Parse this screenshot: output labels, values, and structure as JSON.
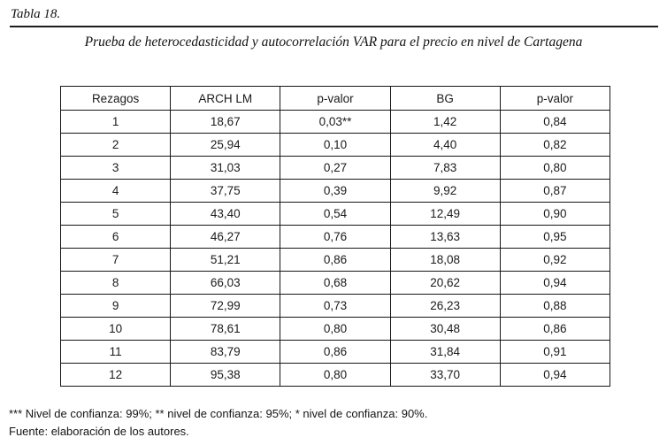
{
  "page": {
    "label": "Tabla 18.",
    "title": "Prueba de heterocedasticidad y autocorrelación VAR para el precio en nivel de Cartagena"
  },
  "table": {
    "headers": [
      "Rezagos",
      "ARCH LM",
      "p-valor",
      "BG",
      "p-valor"
    ],
    "rows": [
      [
        "1",
        "18,67",
        "0,03**",
        "1,42",
        "0,84"
      ],
      [
        "2",
        "25,94",
        "0,10",
        "4,40",
        "0,82"
      ],
      [
        "3",
        "31,03",
        "0,27",
        "7,83",
        "0,80"
      ],
      [
        "4",
        "37,75",
        "0,39",
        "9,92",
        "0,87"
      ],
      [
        "5",
        "43,40",
        "0,54",
        "12,49",
        "0,90"
      ],
      [
        "6",
        "46,27",
        "0,76",
        "13,63",
        "0,95"
      ],
      [
        "7",
        "51,21",
        "0,86",
        "18,08",
        "0,92"
      ],
      [
        "8",
        "66,03",
        "0,68",
        "20,62",
        "0,94"
      ],
      [
        "9",
        "72,99",
        "0,73",
        "26,23",
        "0,88"
      ],
      [
        "10",
        "78,61",
        "0,80",
        "30,48",
        "0,86"
      ],
      [
        "11",
        "83,79",
        "0,86",
        "31,84",
        "0,91"
      ],
      [
        "12",
        "95,38",
        "0,80",
        "33,70",
        "0,94"
      ]
    ]
  },
  "footnotes": {
    "significance": "*** Nivel de confianza: 99%; ** nivel de confianza: 95%; * nivel de confianza: 90%.",
    "source": "Fuente: elaboración de los autores."
  }
}
